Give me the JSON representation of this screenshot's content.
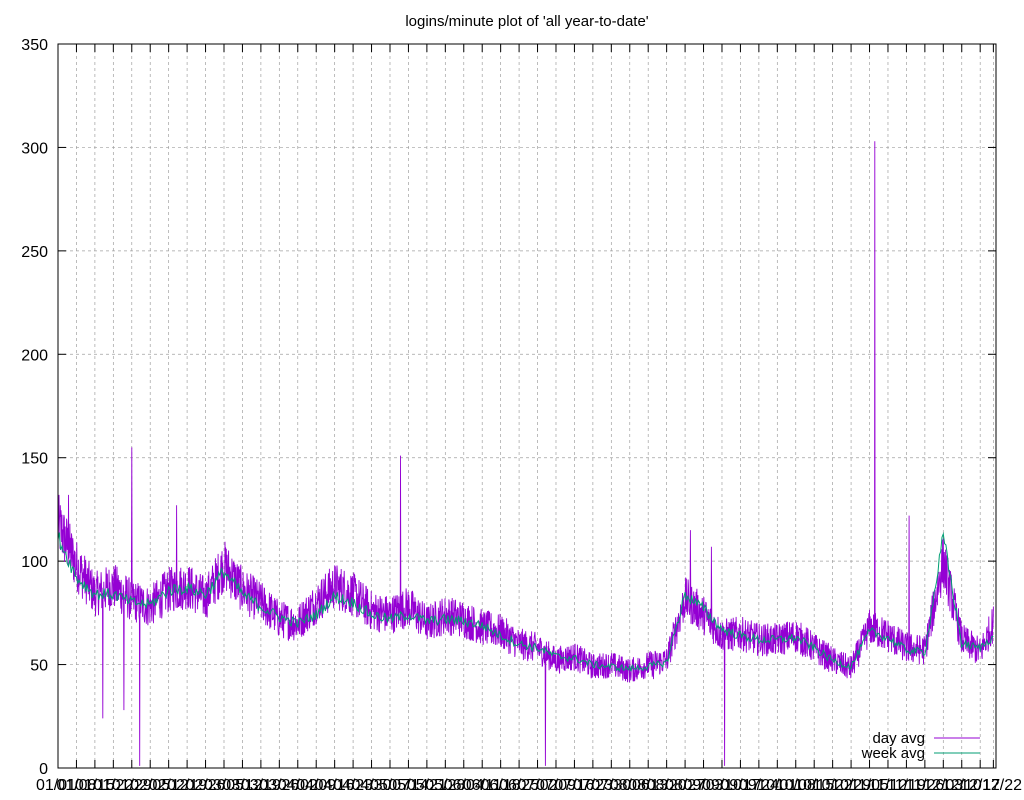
{
  "chart_data": {
    "type": "line",
    "title": "logins/minute plot of 'all year-to-date'",
    "xlabel": "",
    "ylabel": "",
    "ylim": [
      0,
      350
    ],
    "yticks": [
      0,
      50,
      100,
      150,
      200,
      250,
      300,
      350
    ],
    "grid": true,
    "legend_position": "bottom-right",
    "colors": {
      "day": "#9400D3",
      "week": "#009E73",
      "grid": "#a0a0a0"
    },
    "x_tick_labels": [
      "01/01",
      "01/08",
      "01/15",
      "01/22",
      "01/29",
      "02/05",
      "02/12",
      "02/19",
      "02/26",
      "03/05",
      "03/12",
      "03/19",
      "03/26",
      "04/02",
      "04/09",
      "04/16",
      "04/23",
      "04/30",
      "05/07",
      "05/14",
      "05/21",
      "05/28",
      "06/04",
      "06/11",
      "06/18",
      "06/25",
      "07/02",
      "07/09",
      "07/16",
      "07/23",
      "07/30",
      "08/06",
      "08/13",
      "08/20",
      "08/27",
      "09/03",
      "09/10",
      "09/17",
      "09/24",
      "10/01",
      "10/08",
      "10/15",
      "10/22",
      "10/29",
      "11/05",
      "11/12",
      "11/19",
      "11/26",
      "12/03",
      "12/10",
      "12/17",
      "12/22"
    ],
    "x": [
      0,
      7,
      14,
      21,
      28,
      35,
      42,
      49,
      56,
      63,
      70,
      77,
      84,
      91,
      98,
      105,
      112,
      119,
      126,
      133,
      140,
      147,
      154,
      161,
      168,
      175,
      182,
      189,
      196,
      203,
      210,
      217,
      224,
      231,
      238,
      245,
      252,
      259,
      266,
      273,
      280,
      287,
      294,
      301,
      308,
      315,
      322,
      329,
      336,
      343,
      350,
      355
    ],
    "xlim": [
      0,
      356
    ],
    "series": [
      {
        "name": "day avg",
        "values": [
          118,
          98,
          84,
          88,
          81,
          78,
          86,
          88,
          82,
          98,
          86,
          80,
          72,
          70,
          80,
          88,
          84,
          76,
          74,
          78,
          70,
          74,
          72,
          68,
          66,
          60,
          58,
          52,
          54,
          49,
          50,
          47,
          50,
          52,
          82,
          74,
          64,
          65,
          62,
          62,
          64,
          58,
          52,
          48,
          68,
          64,
          58,
          57,
          100,
          62,
          56,
          70
        ],
        "extremes": {
          "spike_max": [
            [
              310,
              303
            ]
          ],
          "notable_highs": [
            [
              4,
              132
            ],
            [
              28,
              155
            ],
            [
              31,
              158
            ],
            [
              45,
              127
            ],
            [
              130,
              151
            ],
            [
              240,
              115
            ],
            [
              248,
              107
            ],
            [
              323,
              122
            ]
          ],
          "notable_lows": [
            [
              17,
              24
            ],
            [
              25,
              28
            ],
            [
              31,
              1
            ],
            [
              185,
              1
            ],
            [
              253,
              1
            ],
            [
              207,
              45
            ],
            [
              226,
              43
            ]
          ]
        }
      },
      {
        "name": "week avg",
        "values": [
          112,
          92,
          84,
          84,
          80,
          79,
          86,
          87,
          84,
          95,
          84,
          78,
          73,
          70,
          74,
          83,
          80,
          74,
          72,
          74,
          71,
          72,
          71,
          69,
          64,
          60,
          58,
          54,
          53,
          50,
          49,
          48,
          49,
          51,
          84,
          77,
          67,
          64,
          62,
          62,
          63,
          58,
          52,
          49,
          66,
          63,
          57,
          56,
          112,
          60,
          58,
          64
        ]
      }
    ]
  }
}
